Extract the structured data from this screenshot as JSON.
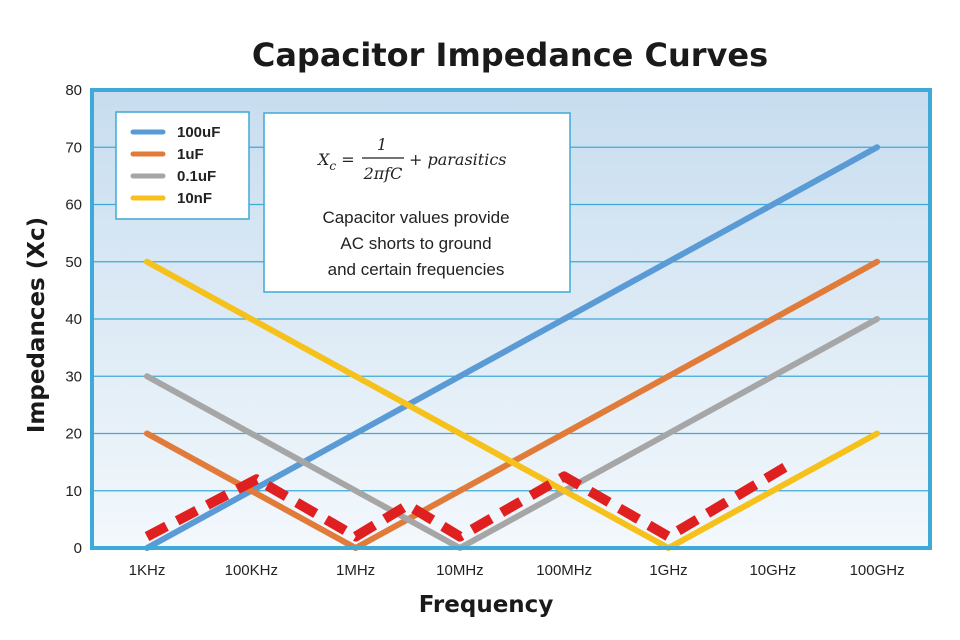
{
  "chart_data": {
    "type": "line",
    "title": "Capacitor Impedance Curves",
    "xlabel": "Frequency",
    "ylabel": "Impedances (Xc)",
    "categories": [
      "1KHz",
      "100KHz",
      "1MHz",
      "10MHz",
      "100MHz",
      "1GHz",
      "10GHz",
      "100GHz"
    ],
    "ylim": [
      0,
      80
    ],
    "yticks": [
      0,
      10,
      20,
      30,
      40,
      50,
      60,
      70,
      80
    ],
    "grid": true,
    "legend_position": "top-left",
    "series": [
      {
        "name": "100uF",
        "color": "#5a9bd5",
        "x": [
          0,
          7
        ],
        "y": [
          0,
          70
        ]
      },
      {
        "name": "1uF",
        "color": "#e07b3a",
        "x": [
          0,
          2,
          7
        ],
        "y": [
          20,
          0,
          50
        ]
      },
      {
        "name": "0.1uF",
        "color": "#a6a6a6",
        "x": [
          0,
          3,
          7
        ],
        "y": [
          30,
          0,
          40
        ]
      },
      {
        "name": "10nF",
        "color": "#f5c11a",
        "x": [
          0,
          5,
          7
        ],
        "y": [
          50,
          0,
          20
        ]
      }
    ],
    "combined_series": {
      "color": "#e02020",
      "style": "dashed",
      "x": [
        0,
        1.05,
        2.0,
        2.5,
        3.0,
        4.0,
        5.0,
        6.2
      ],
      "y": [
        2,
        12,
        2,
        7.5,
        2,
        12.5,
        2,
        15
      ]
    },
    "annotation": {
      "formula": "X_c = 1/(2πfC) + parasitics",
      "formula_lhs": "X",
      "formula_sub": "c",
      "formula_num": "1",
      "formula_den": "2πfC",
      "formula_rhs": "+ parasitics",
      "text_lines": [
        "Capacitor values provide",
        "AC shorts to ground",
        "and certain frequencies"
      ]
    },
    "colors": {
      "plot_border": "#3fa9d8",
      "plot_bg_top": "#c7ddef",
      "plot_bg_bottom": "#f3f8fc",
      "grid": "#3fa9d8"
    }
  }
}
